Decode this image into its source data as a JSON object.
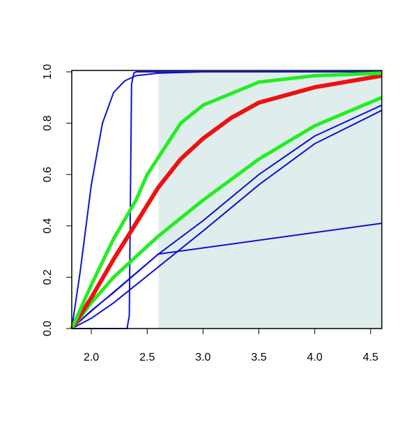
{
  "chart_data": {
    "type": "line",
    "xlim": [
      1.825,
      4.6
    ],
    "ylim": [
      0,
      1
    ],
    "xticks": [
      {
        "value": 2,
        "label": "2.0"
      },
      2.5,
      {
        "value": 3,
        "label": "3.0"
      },
      3.5,
      {
        "value": 4,
        "label": "4.0"
      },
      4.5
    ],
    "yticks": [
      {
        "value": 0,
        "label": "0.0"
      },
      0.2,
      0.4,
      0.6,
      0.8,
      {
        "value": 1,
        "label": "1.0"
      }
    ],
    "shaded_region": {
      "x": [
        2.6,
        4.6
      ],
      "color": "#e0eded"
    },
    "series": [
      {
        "color": "#1010d0",
        "width": 2,
        "x": [
          1.825,
          2.0,
          2.6,
          4.6
        ],
        "values": [
          0,
          0.068,
          0.29,
          0.41
        ]
      },
      {
        "color": "#1010d0",
        "width": 2,
        "x": [
          1.825,
          1.9,
          2.0,
          2.1,
          2.2,
          2.3,
          2.4,
          2.6,
          3.0,
          4.6
        ],
        "values": [
          0,
          0.22,
          0.56,
          0.8,
          0.92,
          0.965,
          0.985,
          0.995,
          1,
          1
        ]
      },
      {
        "color": "#1010d0",
        "width": 2,
        "x": [
          1.825,
          2.32,
          2.34,
          2.35,
          2.36,
          2.38,
          2.4,
          4.6
        ],
        "values": [
          0,
          0,
          0.05,
          0.5,
          0.95,
          0.995,
          1,
          1
        ]
      },
      {
        "color": "#1010d0",
        "width": 2,
        "x": [
          1.825,
          2.0,
          2.2,
          2.6,
          3.0,
          3.5,
          4.0,
          4.6
        ],
        "values": [
          0,
          0.07,
          0.14,
          0.29,
          0.42,
          0.6,
          0.75,
          0.87
        ]
      },
      {
        "color": "#1010d0",
        "width": 2,
        "x": [
          1.825,
          2.0,
          2.2,
          2.6,
          3.0,
          3.5,
          4.0,
          4.6
        ],
        "values": [
          0,
          0.04,
          0.1,
          0.24,
          0.38,
          0.56,
          0.72,
          0.85
        ]
      },
      {
        "color": "#22ee22",
        "width": 5,
        "x": [
          1.825,
          2.0,
          2.2,
          2.6,
          3.0,
          3.5,
          4.0,
          4.6
        ],
        "values": [
          0,
          0.1,
          0.2,
          0.36,
          0.5,
          0.66,
          0.79,
          0.9
        ]
      },
      {
        "color": "#ee1111",
        "width": 6,
        "x": [
          1.825,
          2.0,
          2.2,
          2.4,
          2.6,
          2.8,
          3.0,
          3.25,
          3.5,
          4.0,
          4.6
        ],
        "values": [
          0,
          0.12,
          0.27,
          0.41,
          0.55,
          0.66,
          0.74,
          0.82,
          0.88,
          0.94,
          0.985
        ]
      },
      {
        "color": "#22ee22",
        "width": 5,
        "x": [
          1.825,
          2.0,
          2.2,
          2.4,
          2.5,
          2.8,
          3.0,
          3.5,
          4.0,
          4.6
        ],
        "values": [
          0,
          0.17,
          0.35,
          0.5,
          0.6,
          0.8,
          0.87,
          0.96,
          0.985,
          0.995
        ]
      }
    ]
  }
}
